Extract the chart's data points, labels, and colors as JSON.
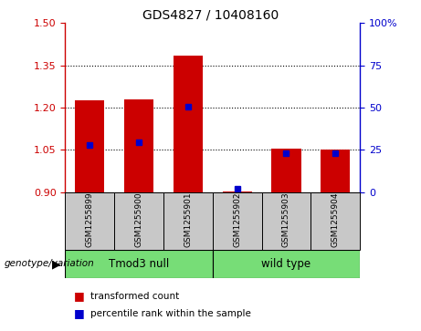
{
  "title": "GDS4827 / 10408160",
  "samples": [
    "GSM1255899",
    "GSM1255900",
    "GSM1255901",
    "GSM1255902",
    "GSM1255903",
    "GSM1255904"
  ],
  "red_values": [
    1.225,
    1.228,
    1.385,
    0.901,
    1.055,
    1.05
  ],
  "blue_values": [
    1.068,
    1.078,
    1.202,
    0.912,
    1.038,
    1.037
  ],
  "y_min": 0.9,
  "y_max": 1.5,
  "y_ticks": [
    0.9,
    1.05,
    1.2,
    1.35,
    1.5
  ],
  "right_ticks": [
    0,
    25,
    50,
    75,
    100
  ],
  "groups": [
    {
      "label": "Tmod3 null",
      "start": 0,
      "end": 2,
      "color": "#77DD77"
    },
    {
      "label": "wild type",
      "start": 3,
      "end": 5,
      "color": "#77DD77"
    }
  ],
  "group_label_prefix": "genotype/variation",
  "legend": [
    {
      "label": "transformed count",
      "color": "#CC0000"
    },
    {
      "label": "percentile rank within the sample",
      "color": "#0000CC"
    }
  ],
  "bar_width": 0.6,
  "bar_color": "#CC0000",
  "blue_color": "#0000CC",
  "bg_color": "#C8C8C8",
  "plot_bg": "#FFFFFF",
  "left_axis_color": "#CC0000",
  "right_axis_color": "#0000CC"
}
